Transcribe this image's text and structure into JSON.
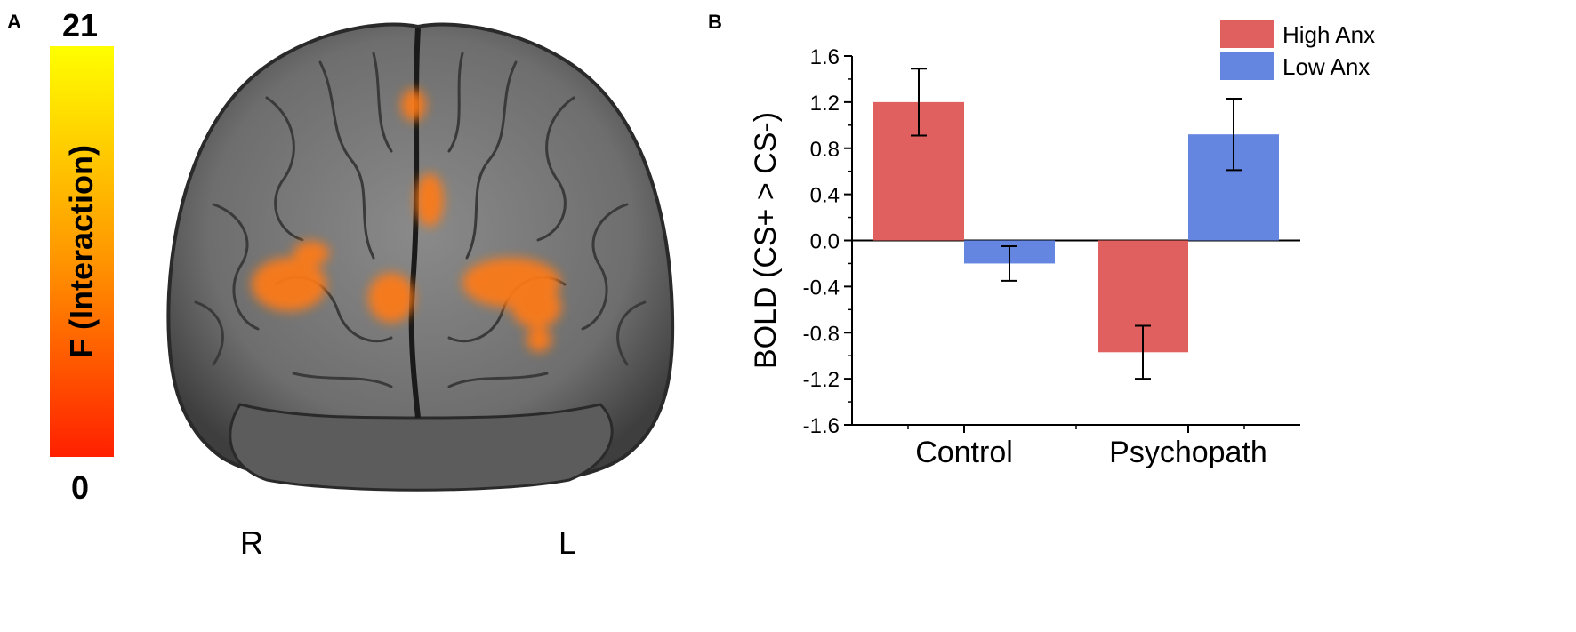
{
  "panel_a": {
    "label": "A",
    "colorbar": {
      "max_label": "21",
      "min_label": "0",
      "title": "F (Interaction)",
      "color_top": "#ffff00",
      "color_bottom": "#ff2000"
    },
    "orientation": {
      "left": "R",
      "right": "L"
    },
    "activation_color": "#ff7a14"
  },
  "panel_b": {
    "label": "B"
  },
  "chart_data": {
    "type": "bar",
    "categories": [
      "Control",
      "Psychopath"
    ],
    "series": [
      {
        "name": "High Anx",
        "color": "#e06060",
        "values": [
          1.2,
          -0.97
        ],
        "errors": [
          0.29,
          0.23
        ]
      },
      {
        "name": "Low Anx",
        "color": "#6485e0",
        "values": [
          -0.2,
          0.92
        ],
        "errors": [
          0.15,
          0.31
        ]
      }
    ],
    "ylabel": "BOLD (CS+ > CS-)",
    "xlabel": "",
    "ylim": [
      -1.6,
      1.6
    ],
    "yticks": [
      "1.6",
      "1.2",
      "0.8",
      "0.4",
      "0.0",
      "-0.4",
      "-0.8",
      "-1.2",
      "-1.6"
    ],
    "legend_position": "top-right",
    "grid": false
  }
}
